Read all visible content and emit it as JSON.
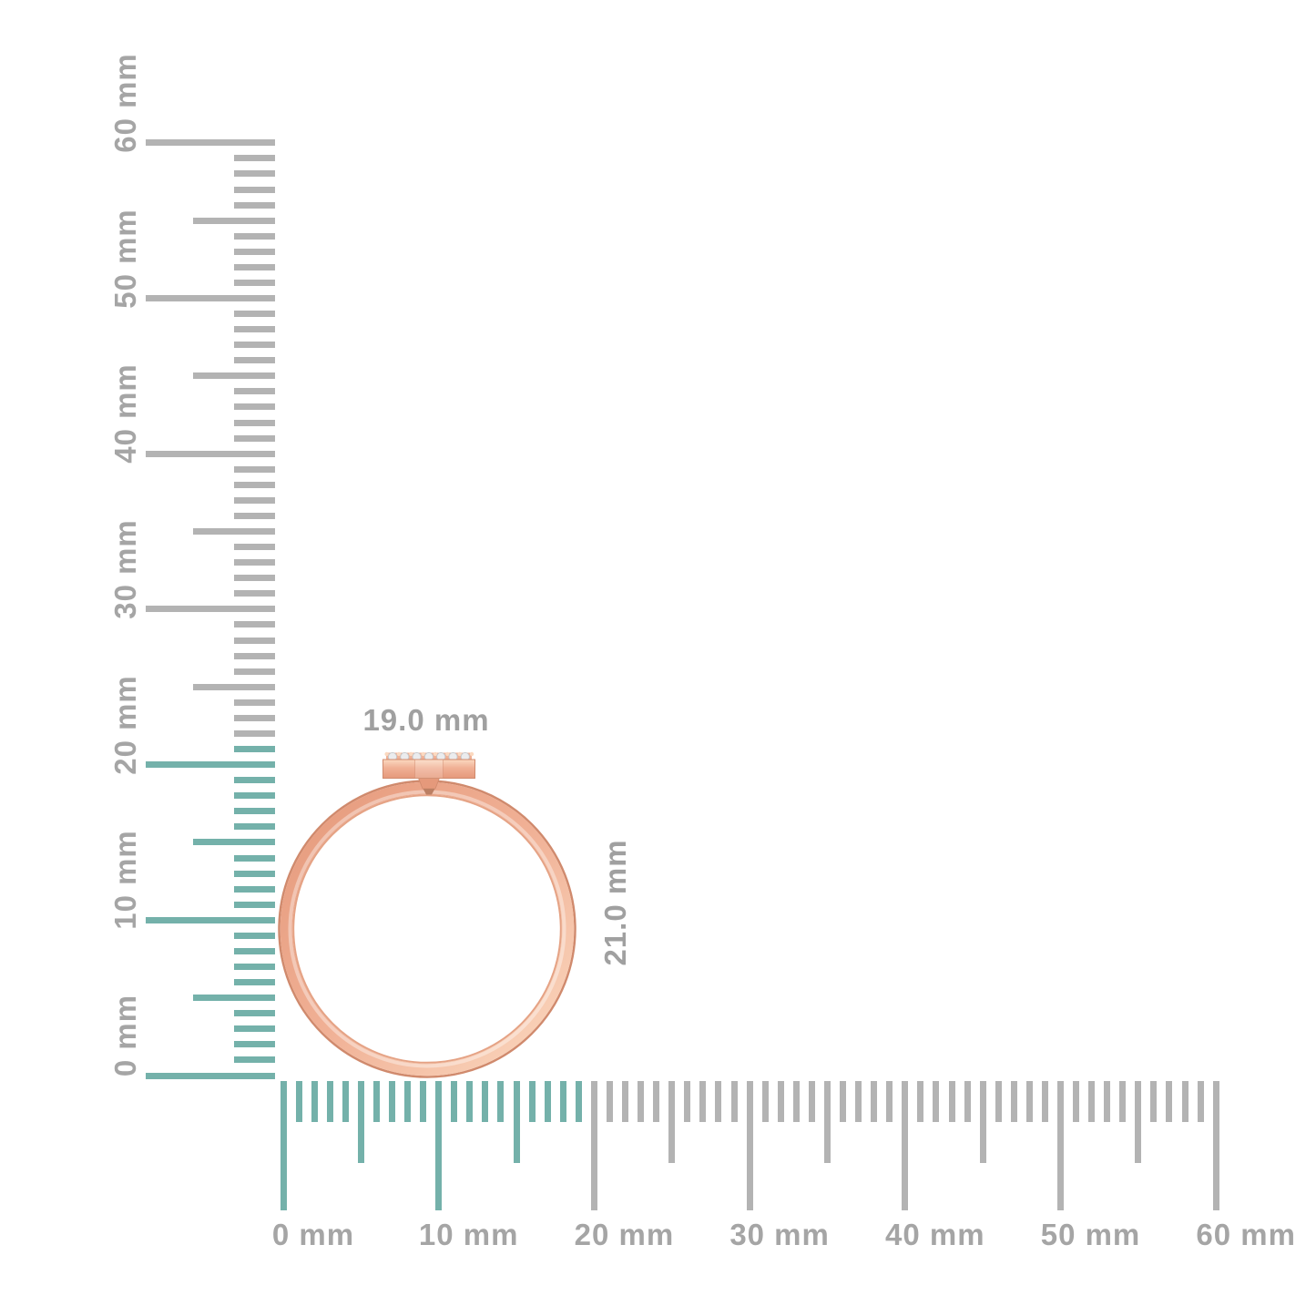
{
  "title": "ring-dimension-diagram",
  "colors": {
    "background": "#ffffff",
    "highlight_teal": "#74b1aa",
    "tick_gray": "#b3b3b3",
    "label_gray": "#a5a5a5",
    "dim_label_gray": "#a0a0a0",
    "ring_gold_edge": "#d08a6d",
    "ring_gold_shadow": "#e5997b",
    "ring_gold_mid": "#f0b095",
    "ring_gold_light": "#fbd9c0",
    "ring_gold_inner_edge": "#e5a284",
    "diamond_white": "#ebecee",
    "diamond_edge": "#c5c7ca",
    "notch_dark": "#bc7f63"
  },
  "vertical_ruler": {
    "orientation": "vertical",
    "unit": "mm",
    "min_mm": 0,
    "max_mm": 60,
    "minor_step_mm": 1,
    "half_step_mm": 5,
    "major_step_mm": 10,
    "major_labels": [
      "0 mm",
      "10 mm",
      "20 mm",
      "30 mm",
      "40 mm",
      "50 mm",
      "60 mm"
    ],
    "highlighted_range_mm": [
      0,
      21
    ]
  },
  "horizontal_ruler": {
    "orientation": "horizontal",
    "unit": "mm",
    "min_mm": 0,
    "max_mm": 60,
    "minor_step_mm": 1,
    "half_step_mm": 5,
    "major_step_mm": 10,
    "major_labels": [
      "0 mm",
      "10 mm",
      "20 mm",
      "30 mm",
      "40 mm",
      "50 mm",
      "60 mm"
    ],
    "highlighted_range_mm": [
      0,
      19
    ]
  },
  "measurements": {
    "width_label": "19.0 mm",
    "height_label": "21.0 mm"
  },
  "object": {
    "type": "ring",
    "description": "rose gold ring, side profile, with flat diamond-set bar on top",
    "stone_count": 7
  }
}
